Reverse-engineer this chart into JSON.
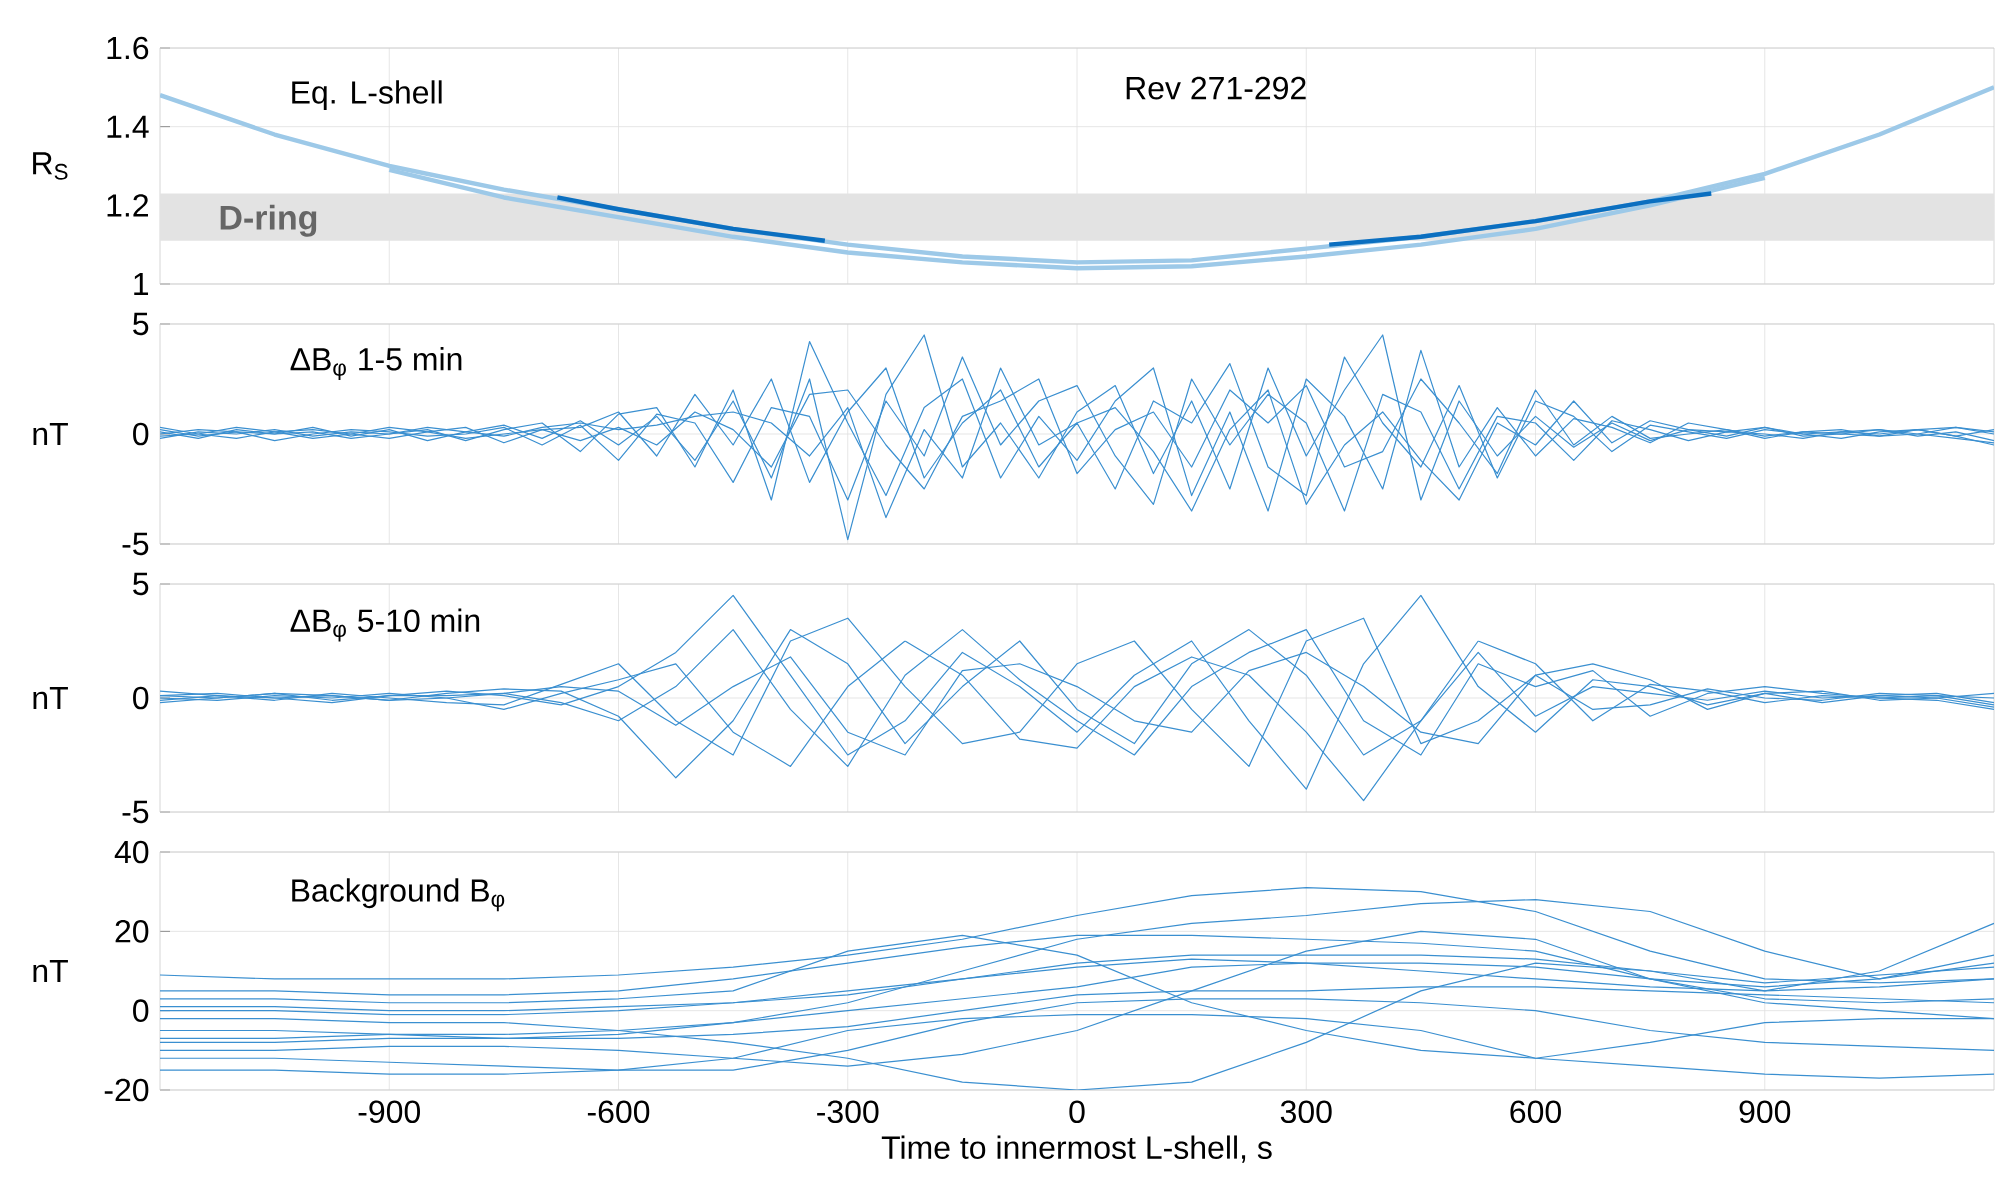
{
  "chart_data": [
    {
      "type": "line",
      "ylabel": "R$_{S}$",
      "annotations": [
        "Eq. L-shell",
        "Rev 271-292"
      ],
      "xlim": [
        -1200,
        1200
      ],
      "xticks": [
        -900,
        -600,
        -300,
        0,
        300,
        600,
        900
      ],
      "ylim": [
        1,
        1.6
      ],
      "yticks": [
        1,
        1.2,
        1.4,
        1.6
      ],
      "grid": true,
      "tick_labels": "y",
      "bands": [
        {
          "axis": "y",
          "from": 1.11,
          "to": 1.23,
          "label": "D-ring",
          "color": "#e3e3e3"
        }
      ],
      "x": [
        -1200,
        -1050,
        -900,
        -750,
        -600,
        -450,
        -300,
        -150,
        0,
        150,
        300,
        450,
        600,
        750,
        900,
        1050,
        1200
      ],
      "series": [
        {
          "color": "#9dc9e8",
          "values": [
            1.48,
            1.38,
            1.3,
            1.24,
            1.19,
            1.14,
            1.1,
            1.07,
            1.055,
            1.06,
            1.09,
            1.12,
            1.16,
            1.21,
            1.28,
            1.38,
            1.5
          ]
        },
        {
          "color": "#9dc9e8",
          "x": [
            -900,
            -750,
            -600,
            -450,
            -300,
            -150,
            0,
            150,
            300,
            450,
            600,
            750,
            900
          ],
          "values": [
            1.29,
            1.22,
            1.17,
            1.12,
            1.08,
            1.055,
            1.04,
            1.045,
            1.07,
            1.1,
            1.14,
            1.2,
            1.27
          ]
        },
        {
          "color": "#0b6fc0",
          "x": [
            -680,
            -600,
            -450,
            -330,
            0,
            330,
            450,
            600,
            750,
            830
          ],
          "values": [
            1.22,
            1.19,
            1.14,
            1.11,
            null,
            1.1,
            1.12,
            1.16,
            1.21,
            1.23
          ]
        }
      ]
    },
    {
      "type": "line",
      "ylabel": "nT",
      "annotations": [
        "ΔB$_{φ}$ 1-5 min"
      ],
      "xlim": [
        -1200,
        1200
      ],
      "xticks": [
        -900,
        -600,
        -300,
        0,
        300,
        600,
        900
      ],
      "ylim": [
        -5,
        5
      ],
      "yticks": [
        -5,
        0,
        5
      ],
      "grid": true,
      "tick_labels": "y",
      "x": [
        -1200,
        -1150,
        -1100,
        -1050,
        -1000,
        -950,
        -900,
        -850,
        -800,
        -750,
        -700,
        -650,
        -600,
        -550,
        -500,
        -450,
        -400,
        -350,
        -300,
        -250,
        -200,
        -150,
        -100,
        -50,
        0,
        50,
        100,
        150,
        200,
        250,
        300,
        350,
        400,
        450,
        500,
        550,
        600,
        650,
        700,
        750,
        800,
        850,
        900,
        950,
        1000,
        1050,
        1100,
        1150,
        1200
      ],
      "series": [
        {
          "color": "#3a8fd0",
          "values": [
            0.1,
            -0.2,
            0.2,
            0,
            0.3,
            -0.1,
            0.2,
            -0.3,
            0.1,
            0.4,
            -0.2,
            0.6,
            -0.5,
            0.8,
            -1.2,
            1.5,
            -2.0,
            2.5,
            -4.8,
            1.8,
            4.5,
            -1.5,
            0.5,
            -2.0,
            1.0,
            2.2,
            -1.8,
            1.5,
            -2.5,
            3.0,
            -1.0,
            2.0,
            4.5,
            -3.0,
            1.5,
            -1.0,
            0.8,
            -0.6,
            0.5,
            -0.3,
            0.2,
            -0.1,
            0.3,
            0,
            -0.2,
            0.1,
            0.2,
            -0.1,
            -0.5
          ]
        },
        {
          "color": "#3a8fd0",
          "values": [
            -0.2,
            0.1,
            0,
            0.2,
            -0.1,
            0.1,
            0,
            0.2,
            -0.3,
            0.2,
            0.5,
            -0.8,
            0.9,
            1.2,
            -1.5,
            2.0,
            -3.0,
            4.2,
            0.5,
            -2.8,
            1.2,
            2.5,
            -2.0,
            0.8,
            -1.2,
            1.5,
            3.0,
            -2.8,
            1.0,
            -3.5,
            2.5,
            0.8,
            -2.5,
            3.8,
            -1.5,
            1.2,
            -1.0,
            0.7,
            0.3,
            -0.4,
            0.5,
            0.2,
            -0.2,
            0.1,
            0.2,
            -0.1,
            0,
            0.3,
            0
          ]
        },
        {
          "color": "#3a8fd0",
          "values": [
            0.3,
            0,
            -0.2,
            0.1,
            0.2,
            0,
            -0.2,
            0.1,
            0.3,
            -0.4,
            0.2,
            0.3,
            1.0,
            -1.0,
            1.8,
            -0.5,
            2.5,
            -2.2,
            1.0,
            3.0,
            -2.0,
            0.5,
            2.0,
            -1.5,
            0.5,
            -2.5,
            1.5,
            0.5,
            3.2,
            -1.5,
            -2.8,
            3.5,
            0.5,
            -1.5,
            2.2,
            -2.0,
            1.5,
            0.8,
            -0.8,
            0.4,
            0.1,
            -0.2,
            0.2,
            0,
            0.1,
            0.2,
            -0.1,
            0.1,
            -0.3
          ]
        },
        {
          "color": "#3a8fd0",
          "values": [
            0,
            0.2,
            0.1,
            -0.3,
            0,
            0.2,
            0.1,
            -0.1,
            0,
            0.3,
            -0.5,
            0.4,
            -1.2,
            0.9,
            0.5,
            -2.2,
            1.2,
            0.8,
            -3.0,
            1.5,
            -1.0,
            3.5,
            -0.5,
            1.5,
            2.2,
            -1.0,
            -3.2,
            2.5,
            -0.5,
            1.8,
            0.5,
            -3.5,
            1.8,
            1.0,
            -2.5,
            0.8,
            0.5,
            -1.2,
            0.6,
            0.2,
            -0.3,
            0.1,
            0,
            -0.2,
            0.1,
            0,
            0.2,
            -0.1,
            0.2
          ]
        },
        {
          "color": "#3a8fd0",
          "values": [
            -0.1,
            0,
            0.3,
            0.1,
            -0.2,
            0,
            0.3,
            0.1,
            -0.2,
            0,
            0.2,
            -0.3,
            0.3,
            -0.5,
            1.0,
            0.2,
            -1.5,
            1.8,
            2.0,
            -0.5,
            -2.5,
            0.8,
            1.5,
            2.5,
            -1.8,
            0.2,
            1.0,
            -1.5,
            2.0,
            0.5,
            2.2,
            -1.5,
            -0.8,
            2.5,
            0.5,
            -1.8,
            2.0,
            -0.5,
            0.8,
            -0.2,
            0,
            0.2,
            -0.1,
            0.1,
            0,
            0.2,
            0,
            -0.2,
            -0.4
          ]
        },
        {
          "color": "#3a8fd0",
          "values": [
            0.2,
            -0.1,
            0.1,
            0,
            0.1,
            -0.2,
            0,
            0.3,
            0.1,
            -0.1,
            0.3,
            0.5,
            0.2,
            0.4,
            0.8,
            1.0,
            0.5,
            -1.0,
            1.2,
            -3.8,
            0.2,
            -2.0,
            3.0,
            -0.5,
            0.5,
            1.2,
            -0.8,
            -3.5,
            0.2,
            2.0,
            -3.2,
            -0.5,
            1.0,
            -1.2,
            -3.0,
            0.5,
            -0.5,
            1.5,
            -0.4,
            0.6,
            0.2,
            0.1,
            0.3,
            -0.1,
            0,
            -0.1,
            0.2,
            0.3,
            0.1
          ]
        }
      ]
    },
    {
      "type": "line",
      "ylabel": "nT",
      "annotations": [
        "ΔB$_{φ}$ 5-10 min"
      ],
      "xlim": [
        -1200,
        1200
      ],
      "xticks": [
        -900,
        -600,
        -300,
        0,
        300,
        600,
        900
      ],
      "ylim": [
        -5,
        5
      ],
      "yticks": [
        -5,
        0,
        5
      ],
      "grid": true,
      "tick_labels": "y",
      "x": [
        -1200,
        -1125,
        -1050,
        -975,
        -900,
        -825,
        -750,
        -675,
        -600,
        -525,
        -450,
        -375,
        -300,
        -225,
        -150,
        -75,
        0,
        75,
        150,
        225,
        300,
        375,
        450,
        525,
        600,
        675,
        750,
        825,
        900,
        975,
        1050,
        1125,
        1200
      ],
      "series": [
        {
          "color": "#3a8fd0",
          "values": [
            0.1,
            0.2,
            0,
            -0.2,
            0.1,
            0.3,
            0.1,
            -0.3,
            0.5,
            2.0,
            4.5,
            1.0,
            -2.5,
            -1.0,
            2.0,
            0.5,
            -1.5,
            1.0,
            2.5,
            -1.0,
            -4.0,
            1.5,
            4.5,
            0.5,
            -1.5,
            0.8,
            0.5,
            -0.3,
            0.2,
            0.3,
            -0.1,
            0,
            -0.4
          ]
        },
        {
          "color": "#3a8fd0",
          "values": [
            -0.2,
            0,
            0.2,
            0.1,
            -0.1,
            0.2,
            0.4,
            0.3,
            -0.8,
            -3.5,
            -1.0,
            3.0,
            1.5,
            -2.0,
            0.5,
            2.5,
            -0.5,
            -2.0,
            1.5,
            3.0,
            1.0,
            -2.5,
            -1.0,
            2.0,
            -0.8,
            0.5,
            0.2,
            -0.1,
            0.3,
            0,
            0.1,
            0.2,
            -0.2
          ]
        },
        {
          "color": "#3a8fd0",
          "values": [
            0.3,
            0.1,
            -0.1,
            0.2,
            0,
            -0.2,
            -0.3,
            0.6,
            1.5,
            -1.0,
            -2.5,
            2.5,
            3.5,
            0.5,
            -2.0,
            -1.5,
            1.5,
            2.5,
            -0.5,
            -3.0,
            2.5,
            3.5,
            -2.0,
            -1.0,
            1.0,
            -0.5,
            -0.3,
            0.4,
            0,
            -0.1,
            0.2,
            0.1,
            0
          ]
        },
        {
          "color": "#3a8fd0",
          "values": [
            0,
            -0.1,
            0.1,
            0,
            0.2,
            0,
            -0.5,
            0.2,
            0.8,
            1.5,
            -1.5,
            -3.0,
            0.5,
            2.5,
            1.0,
            -1.8,
            -2.2,
            0.5,
            1.8,
            1.0,
            -1.5,
            -4.5,
            -1.0,
            2.5,
            1.5,
            -1.0,
            0.6,
            0.3,
            -0.2,
            0.1,
            0,
            -0.1,
            -0.5
          ]
        },
        {
          "color": "#3a8fd0",
          "values": [
            0.1,
            0,
            0.2,
            -0.1,
            0.1,
            0.1,
            0.2,
            -0.2,
            -1.0,
            0.5,
            3.0,
            -0.5,
            -3.0,
            1.0,
            3.0,
            0.8,
            -1.0,
            -2.5,
            0.5,
            2.0,
            3.0,
            -1.0,
            -2.5,
            1.5,
            0.5,
            1.2,
            -0.8,
            0.2,
            0.5,
            0.2,
            0,
            0.1,
            -0.3
          ]
        },
        {
          "color": "#3a8fd0",
          "values": [
            -0.1,
            0.1,
            0,
            0.1,
            -0.1,
            0,
            0.2,
            0.5,
            0.3,
            -1.2,
            0.5,
            1.8,
            -1.5,
            -2.5,
            1.2,
            1.5,
            0.5,
            -1.0,
            -1.5,
            1.2,
            2.0,
            0.5,
            -1.5,
            -2.0,
            1.0,
            1.5,
            0.8,
            -0.5,
            0.2,
            -0.2,
            0.1,
            0,
            0.2
          ]
        }
      ]
    },
    {
      "type": "line",
      "ylabel": "nT",
      "xlabel": "Time to innermost L-shell, s",
      "annotations": [
        "Background B$_{φ}$"
      ],
      "xlim": [
        -1200,
        1200
      ],
      "xticks": [
        -900,
        -600,
        -300,
        0,
        300,
        600,
        900
      ],
      "ylim": [
        -20,
        40
      ],
      "yticks": [
        -20,
        0,
        20,
        40
      ],
      "grid": true,
      "x": [
        -1200,
        -1050,
        -900,
        -750,
        -600,
        -450,
        -300,
        -150,
        0,
        150,
        300,
        450,
        600,
        750,
        900,
        1050,
        1200
      ],
      "series": [
        {
          "color": "#3a8fd0",
          "values": [
            9,
            8,
            8,
            8,
            9,
            11,
            14,
            18,
            24,
            29,
            31,
            30,
            25,
            15,
            8,
            7,
            8
          ]
        },
        {
          "color": "#3a8fd0",
          "values": [
            -8,
            -8,
            -7,
            -7,
            -6,
            -3,
            2,
            10,
            18,
            22,
            24,
            27,
            28,
            25,
            15,
            8,
            12
          ]
        },
        {
          "color": "#3a8fd0",
          "values": [
            5,
            5,
            4,
            4,
            5,
            8,
            12,
            16,
            19,
            19,
            18,
            17,
            15,
            8,
            3,
            2,
            3
          ]
        },
        {
          "color": "#3a8fd0",
          "values": [
            -15,
            -15,
            -16,
            -16,
            -15,
            -12,
            -5,
            -2,
            -1,
            -1,
            -2,
            -5,
            -12,
            -14,
            -16,
            -17,
            -16
          ]
        },
        {
          "color": "#3a8fd0",
          "values": [
            -2,
            -2,
            -3,
            -3,
            -5,
            -8,
            -12,
            -18,
            -20,
            -18,
            -8,
            5,
            12,
            10,
            5,
            10,
            22
          ]
        },
        {
          "color": "#3a8fd0",
          "values": [
            3,
            3,
            2,
            2,
            3,
            5,
            15,
            19,
            14,
            2,
            -5,
            -10,
            -12,
            -8,
            -3,
            -2,
            -2
          ]
        },
        {
          "color": "#3a8fd0",
          "values": [
            -10,
            -10,
            -9,
            -9,
            -10,
            -12,
            -14,
            -11,
            -5,
            5,
            15,
            20,
            18,
            8,
            2,
            0,
            -2
          ]
        },
        {
          "color": "#3a8fd0",
          "values": [
            0,
            0,
            -1,
            -1,
            0,
            2,
            5,
            8,
            11,
            13,
            12,
            10,
            8,
            6,
            5,
            6,
            8
          ]
        },
        {
          "color": "#3a8fd0",
          "values": [
            -5,
            -5,
            -6,
            -7,
            -7,
            -6,
            -4,
            0,
            4,
            5,
            5,
            6,
            6,
            5,
            4,
            3,
            2
          ]
        },
        {
          "color": "#3a8fd0",
          "values": [
            -7,
            -7,
            -6,
            -6,
            -5,
            -3,
            0,
            3,
            6,
            11,
            12,
            12,
            11,
            8,
            6,
            8,
            14
          ]
        },
        {
          "color": "#3a8fd0",
          "values": [
            1,
            1,
            0,
            0,
            1,
            2,
            4,
            8,
            12,
            14,
            14,
            14,
            13,
            10,
            7,
            9,
            11
          ]
        },
        {
          "color": "#3a8fd0",
          "values": [
            -12,
            -12,
            -13,
            -14,
            -15,
            -15,
            -10,
            -3,
            2,
            3,
            3,
            2,
            0,
            -5,
            -8,
            -9,
            -10
          ]
        }
      ]
    }
  ]
}
